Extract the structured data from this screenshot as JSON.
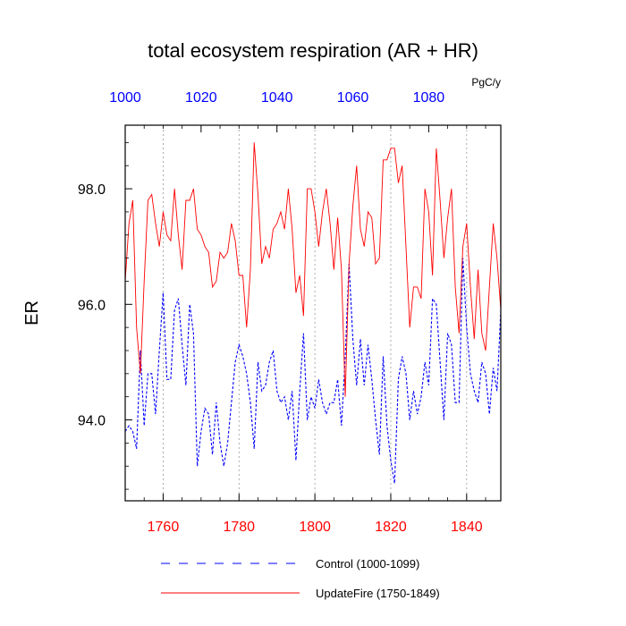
{
  "chart_data": {
    "type": "line",
    "title": "total ecosystem respiration (AR + HR)",
    "units": "PgC/y",
    "ylabel": "ER",
    "ylim": [
      92.6,
      99.1
    ],
    "yticks": [
      94.0,
      96.0,
      98.0
    ],
    "ytick_labels": [
      "94.0",
      "96.0",
      "98.0"
    ],
    "y_minor_step": 0.4,
    "grid": "vertical dotted lines at major x ticks",
    "x_bottom": {
      "range": [
        1750,
        1849
      ],
      "ticks": [
        1760,
        1780,
        1800,
        1820,
        1840
      ],
      "tick_labels": [
        "1760",
        "1780",
        "1800",
        "1820",
        "1840"
      ],
      "color": "#ff0000"
    },
    "x_top": {
      "range": [
        1000,
        1099
      ],
      "ticks": [
        1000,
        1020,
        1040,
        1060,
        1080
      ],
      "tick_labels": [
        "1000",
        "1020",
        "1040",
        "1060",
        "1080"
      ],
      "color": "#0000ff"
    },
    "legend_position": "bottom",
    "series": [
      {
        "name": "Control (1000-1099)",
        "color": "#0000ff",
        "dash": "dashed",
        "x_axis": "top",
        "x_start": 1000,
        "values": [
          93.8,
          93.9,
          93.8,
          93.5,
          95.2,
          93.9,
          94.8,
          94.8,
          94.1,
          95.2,
          96.2,
          94.7,
          94.7,
          95.9,
          96.1,
          95.3,
          94.6,
          96.0,
          95.5,
          93.2,
          93.8,
          94.2,
          94.1,
          93.4,
          94.3,
          93.6,
          93.2,
          93.6,
          94.3,
          95.0,
          95.3,
          95.1,
          94.8,
          94.3,
          93.5,
          95.0,
          94.5,
          94.6,
          95.0,
          95.2,
          94.5,
          94.3,
          94.4,
          94.0,
          94.5,
          93.3,
          94.5,
          95.5,
          94.0,
          94.4,
          94.2,
          94.7,
          94.3,
          94.1,
          94.3,
          94.3,
          94.7,
          93.9,
          95.1,
          96.7,
          95.4,
          94.6,
          95.4,
          94.6,
          95.3,
          94.7,
          94.0,
          93.4,
          95.1,
          93.9,
          93.3,
          92.9,
          94.7,
          95.1,
          94.8,
          94.0,
          94.5,
          94.1,
          94.4,
          95.0,
          94.6,
          96.1,
          96.0,
          95.0,
          94.0,
          95.5,
          95.3,
          94.3,
          94.3,
          96.8,
          95.6,
          94.8,
          94.5,
          94.3,
          95.0,
          94.8,
          94.1,
          94.9,
          94.5,
          95.9
        ]
      },
      {
        "name": "UpdateFire (1750-1849)",
        "color": "#ff0000",
        "dash": "solid",
        "x_axis": "bottom",
        "x_start": 1750,
        "values": [
          96.4,
          97.4,
          97.8,
          95.6,
          94.8,
          96.4,
          97.8,
          97.9,
          97.4,
          97.0,
          97.6,
          97.2,
          97.1,
          98.0,
          97.2,
          96.6,
          97.8,
          97.8,
          98.0,
          97.3,
          97.2,
          97.0,
          96.9,
          96.3,
          96.4,
          96.9,
          96.8,
          96.9,
          97.4,
          97.1,
          96.5,
          96.5,
          95.6,
          96.6,
          98.8,
          97.9,
          96.7,
          97.0,
          96.8,
          97.3,
          97.4,
          97.6,
          97.3,
          98.0,
          97.3,
          96.2,
          96.5,
          95.8,
          98.0,
          98.0,
          97.6,
          97.0,
          97.6,
          98.0,
          97.4,
          96.6,
          97.5,
          96.6,
          94.4,
          96.7,
          97.7,
          98.4,
          97.3,
          97.0,
          97.6,
          97.5,
          96.7,
          96.8,
          98.5,
          98.5,
          98.7,
          98.7,
          98.1,
          98.4,
          97.0,
          95.6,
          96.3,
          96.3,
          96.1,
          98.0,
          97.6,
          96.5,
          98.7,
          97.8,
          96.8,
          97.5,
          98.0,
          96.3,
          95.5,
          97.0,
          97.4,
          96.3,
          95.4,
          96.6,
          95.5,
          95.2,
          96.3,
          97.4,
          96.8,
          95.9
        ]
      }
    ]
  }
}
